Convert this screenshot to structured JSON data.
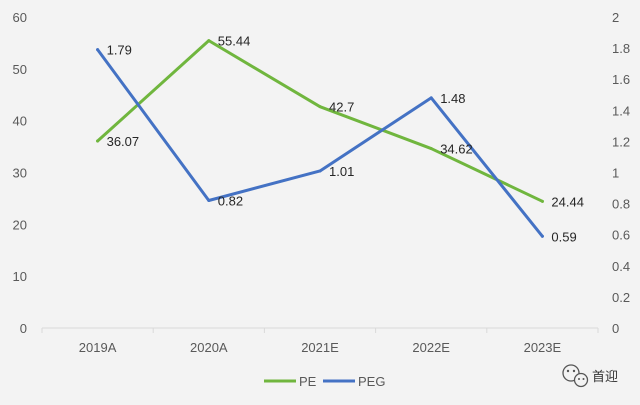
{
  "chart_data": {
    "type": "line",
    "categories": [
      "2019A",
      "2020A",
      "2021E",
      "2022E",
      "2023E"
    ],
    "series": [
      {
        "name": "PE",
        "axis": "left",
        "color": "#70b63e",
        "values": [
          36.07,
          55.44,
          42.7,
          34.62,
          24.44
        ],
        "labels": [
          "36.07",
          "55.44",
          "42.7",
          "34.62",
          "24.44"
        ]
      },
      {
        "name": "PEG",
        "axis": "right",
        "color": "#4472c4",
        "values": [
          1.79,
          0.82,
          1.01,
          1.48,
          0.59
        ],
        "labels": [
          "1.79",
          "0.82",
          "1.01",
          "1.48",
          "0.59"
        ]
      }
    ],
    "y_left": {
      "min": 0,
      "max": 60,
      "ticks": [
        "0",
        "10",
        "20",
        "30",
        "40",
        "50",
        "60"
      ]
    },
    "y_right": {
      "min": 0,
      "max": 2,
      "ticks": [
        "0",
        "0.2",
        "0.4",
        "0.6",
        "0.8",
        "1",
        "1.2",
        "1.4",
        "1.6",
        "1.8",
        "2"
      ]
    },
    "grid": false,
    "legend": "bottom"
  },
  "watermark": {
    "text": "首迎",
    "icon": "wechat-icon"
  }
}
